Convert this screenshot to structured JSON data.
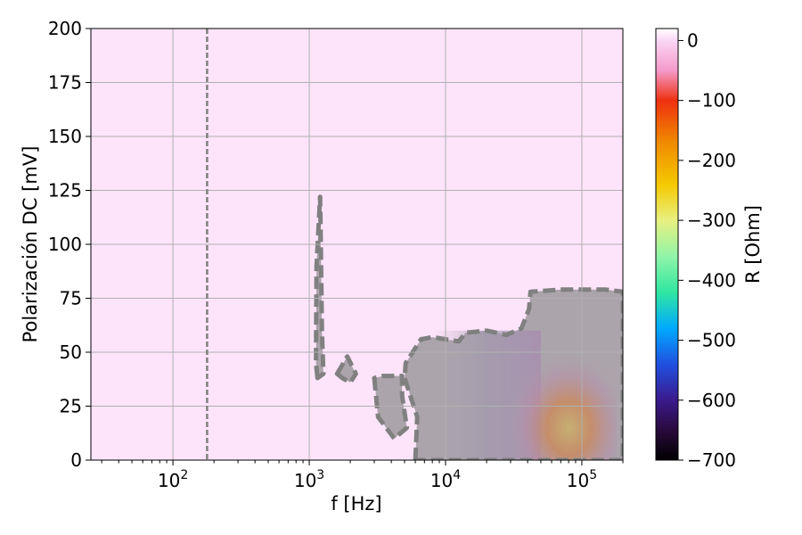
{
  "chart_data": {
    "type": "heatmap",
    "title": "",
    "xlabel": "f [Hz]",
    "ylabel": "Polarización DC [mV]",
    "x_scale": "log",
    "xlim": [
      25,
      200000
    ],
    "ylim": [
      0,
      200
    ],
    "x_ticks": [
      {
        "value": 100,
        "base": "10",
        "exp": "2"
      },
      {
        "value": 1000,
        "base": "10",
        "exp": "3"
      },
      {
        "value": 10000,
        "base": "10",
        "exp": "4"
      },
      {
        "value": 100000,
        "base": "10",
        "exp": "5"
      }
    ],
    "y_ticks": [
      {
        "value": 0,
        "label": "0"
      },
      {
        "value": 25,
        "label": "25"
      },
      {
        "value": 50,
        "label": "50"
      },
      {
        "value": 75,
        "label": "75"
      },
      {
        "value": 100,
        "label": "100"
      },
      {
        "value": 125,
        "label": "125"
      },
      {
        "value": 150,
        "label": "150"
      },
      {
        "value": 175,
        "label": "175"
      },
      {
        "value": 200,
        "label": "200"
      }
    ],
    "grid": true,
    "background_color": "#fde4fb",
    "colorbar": {
      "label": "R [Ohm]",
      "range": [
        -700,
        20
      ],
      "ticks": [
        {
          "value": 0,
          "label": "0"
        },
        {
          "value": -100,
          "label": "−100"
        },
        {
          "value": -200,
          "label": "−200"
        },
        {
          "value": -300,
          "label": "−300"
        },
        {
          "value": -400,
          "label": "−400"
        },
        {
          "value": -500,
          "label": "−500"
        },
        {
          "value": -600,
          "label": "−600"
        },
        {
          "value": -700,
          "label": "−700"
        }
      ],
      "stops": [
        {
          "value": -700,
          "color": "#000000"
        },
        {
          "value": -650,
          "color": "#2a0a3c"
        },
        {
          "value": -600,
          "color": "#3a1a8c"
        },
        {
          "value": -540,
          "color": "#2050e0"
        },
        {
          "value": -480,
          "color": "#00aaff"
        },
        {
          "value": -420,
          "color": "#30e6a0"
        },
        {
          "value": -360,
          "color": "#90f5a8"
        },
        {
          "value": -300,
          "color": "#e8f080"
        },
        {
          "value": -240,
          "color": "#f5c800"
        },
        {
          "value": -170,
          "color": "#f08a00"
        },
        {
          "value": -100,
          "color": "#ee3010"
        },
        {
          "value": -50,
          "color": "#f49acb"
        },
        {
          "value": 0,
          "color": "#fbd6f5"
        },
        {
          "value": 20,
          "color": "#ffffff"
        }
      ]
    },
    "vertical_reference_line": {
      "x": 178,
      "style": "dashed",
      "color": "#808080"
    },
    "masked_regions": {
      "fill": "#aba4ab",
      "edge": "#808080",
      "style": "dashed",
      "polygons": [
        {
          "name": "narrow-spike",
          "points": [
            [
              1150,
              38
            ],
            [
              1120,
              45
            ],
            [
              1130,
              90
            ],
            [
              1200,
              122
            ],
            [
              1210,
              110
            ],
            [
              1240,
              60
            ],
            [
              1270,
              40
            ]
          ]
        },
        {
          "name": "small-lobe",
          "points": [
            [
              1600,
              40
            ],
            [
              1900,
              48
            ],
            [
              2200,
              40
            ],
            [
              2000,
              36
            ],
            [
              1750,
              38
            ]
          ]
        },
        {
          "name": "low-blob",
          "points": [
            [
              3000,
              38
            ],
            [
              3200,
              20
            ],
            [
              4200,
              10
            ],
            [
              5200,
              15
            ],
            [
              4800,
              30
            ],
            [
              4800,
              39
            ],
            [
              3500,
              39
            ]
          ]
        },
        {
          "name": "main-region",
          "points": [
            [
              6000,
              0
            ],
            [
              6200,
              20
            ],
            [
              5000,
              38
            ],
            [
              5100,
              45
            ],
            [
              6600,
              56
            ],
            [
              8000,
              57
            ],
            [
              10000,
              56
            ],
            [
              12500,
              55
            ],
            [
              14000,
              59
            ],
            [
              20000,
              60
            ],
            [
              28000,
              58
            ],
            [
              36000,
              61
            ],
            [
              41000,
              70
            ],
            [
              42000,
              78
            ],
            [
              70000,
              79
            ],
            [
              150000,
              79
            ],
            [
              200000,
              78
            ],
            [
              200000,
              0
            ]
          ]
        }
      ]
    },
    "heat_spot": {
      "description_values": "negative resistance region",
      "x_range": [
        30000,
        180000
      ],
      "y_range": [
        0,
        60
      ],
      "peak_value": -230
    }
  }
}
